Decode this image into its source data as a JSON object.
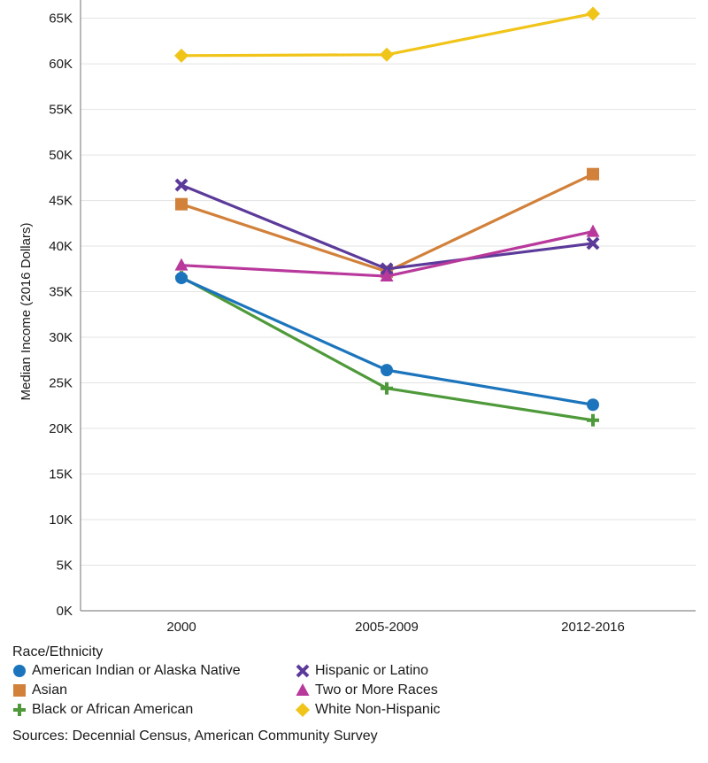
{
  "chart_data": {
    "type": "line",
    "ylabel": "Median Income (2016 Dollars)",
    "xlabel": "",
    "categories": [
      "2000",
      "2005-2009",
      "2012-2016"
    ],
    "ylim": [
      0,
      67000
    ],
    "yticks": [
      0,
      5000,
      10000,
      15000,
      20000,
      25000,
      30000,
      35000,
      40000,
      45000,
      50000,
      55000,
      60000,
      65000
    ],
    "ytick_labels": [
      "0K",
      "5K",
      "10K",
      "15K",
      "20K",
      "25K",
      "30K",
      "35K",
      "40K",
      "45K",
      "50K",
      "55K",
      "60K",
      "65K"
    ],
    "grid": "horizontal",
    "series": [
      {
        "name": "American Indian or Alaska Native",
        "values": [
          36500,
          26400,
          22600
        ],
        "color": "#1c75bc",
        "marker": "circle"
      },
      {
        "name": "Asian",
        "values": [
          44600,
          37200,
          47900
        ],
        "color": "#d2813b",
        "marker": "square"
      },
      {
        "name": "Black or African American",
        "values": [
          36600,
          24400,
          20900
        ],
        "color": "#4e9a3a",
        "marker": "plus"
      },
      {
        "name": "Hispanic or Latino",
        "values": [
          46700,
          37500,
          40300
        ],
        "color": "#5b3a9a",
        "marker": "x"
      },
      {
        "name": "Two or More Races",
        "values": [
          37900,
          36700,
          41600
        ],
        "color": "#b8399b",
        "marker": "triangle"
      },
      {
        "name": "White Non-Hispanic",
        "values": [
          60900,
          61000,
          65500
        ],
        "color": "#f0c419",
        "marker": "diamond"
      }
    ]
  },
  "legend": {
    "title": "Race/Ethnicity",
    "placement": "bottom-left"
  },
  "source_note": "Sources: Decennial Census, American Community Survey"
}
